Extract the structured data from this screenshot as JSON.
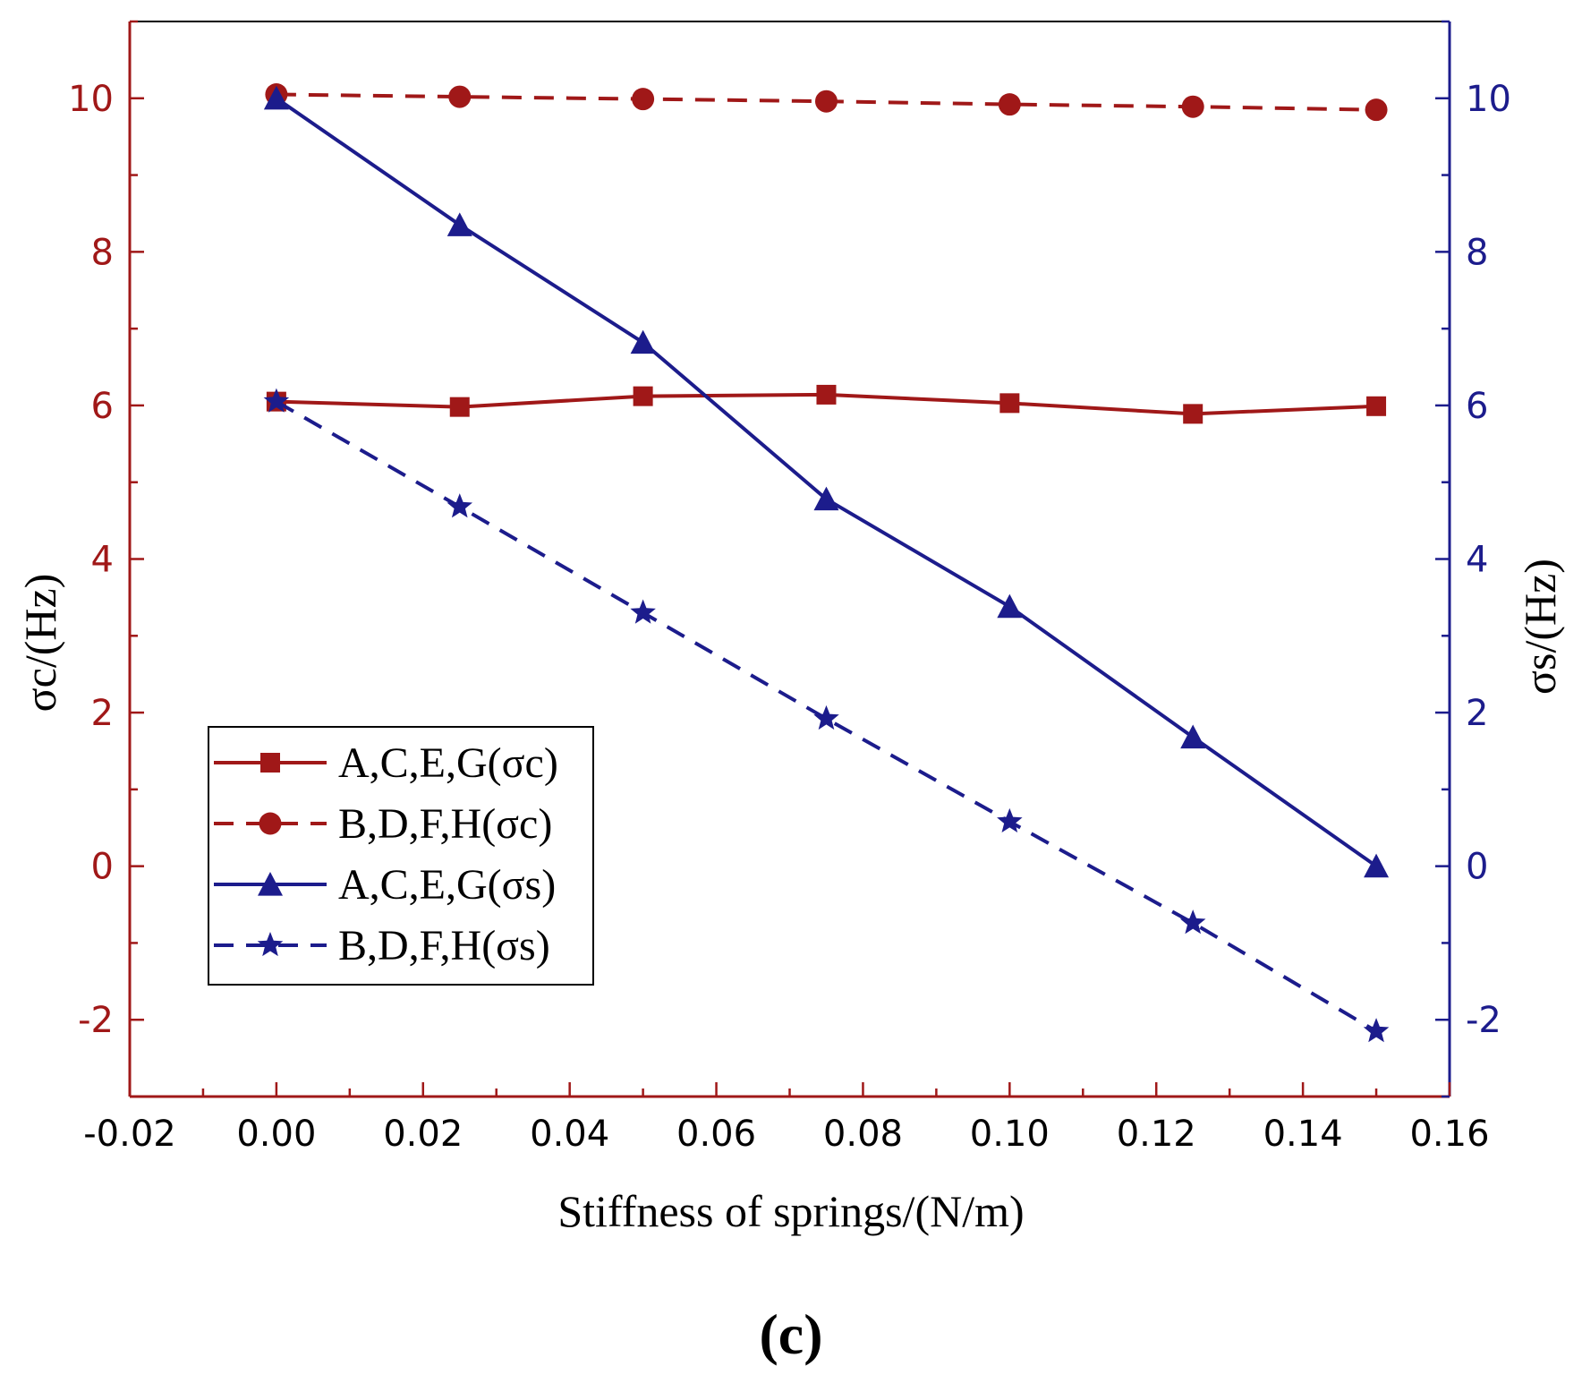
{
  "chart_data": {
    "type": "line",
    "x": [
      0.0,
      0.025,
      0.05,
      0.075,
      0.1,
      0.125,
      0.15
    ],
    "xlabel": "Stiffness of springs/(N/m)",
    "ylabel_left": "σc/(Hz)",
    "ylabel_right": "σs/(Hz)",
    "xlim": [
      -0.02,
      0.16
    ],
    "ylim_left": [
      -3,
      11
    ],
    "ylim_right": [
      -3,
      11
    ],
    "x_ticks": [
      "-0.02",
      "0.00",
      "0.02",
      "0.04",
      "0.06",
      "0.08",
      "0.10",
      "0.12",
      "0.14",
      "0.16"
    ],
    "y_ticks_left": [
      "-2",
      "0",
      "2",
      "4",
      "6",
      "8",
      "10"
    ],
    "y_ticks_right": [
      "-2",
      "0",
      "2",
      "4",
      "6",
      "8",
      "10"
    ],
    "grid": false,
    "legend_position": "bottom-left",
    "panel_label": "(c)",
    "colors": {
      "red": "#a01818",
      "blue": "#1c1c8c"
    },
    "series": [
      {
        "name": "A,C,E,G(σc)",
        "axis": "left",
        "color": "red",
        "line": "solid",
        "marker": "square",
        "values": [
          6.05,
          5.98,
          6.12,
          6.14,
          6.03,
          5.89,
          5.99
        ]
      },
      {
        "name": "B,D,F,H(σc)",
        "axis": "left",
        "color": "red",
        "line": "dashed",
        "marker": "circle",
        "values": [
          10.05,
          10.02,
          9.99,
          9.96,
          9.92,
          9.89,
          9.85
        ]
      },
      {
        "name": "A,C,E,G(σs)",
        "axis": "right",
        "color": "blue",
        "line": "solid",
        "marker": "triangle",
        "values": [
          10.0,
          8.35,
          6.82,
          4.78,
          3.38,
          1.68,
          0.0
        ]
      },
      {
        "name": "B,D,F,H(σs)",
        "axis": "right",
        "color": "blue",
        "line": "dashed",
        "marker": "star",
        "values": [
          6.05,
          4.68,
          3.3,
          1.92,
          0.58,
          -0.74,
          -2.15
        ]
      }
    ]
  }
}
